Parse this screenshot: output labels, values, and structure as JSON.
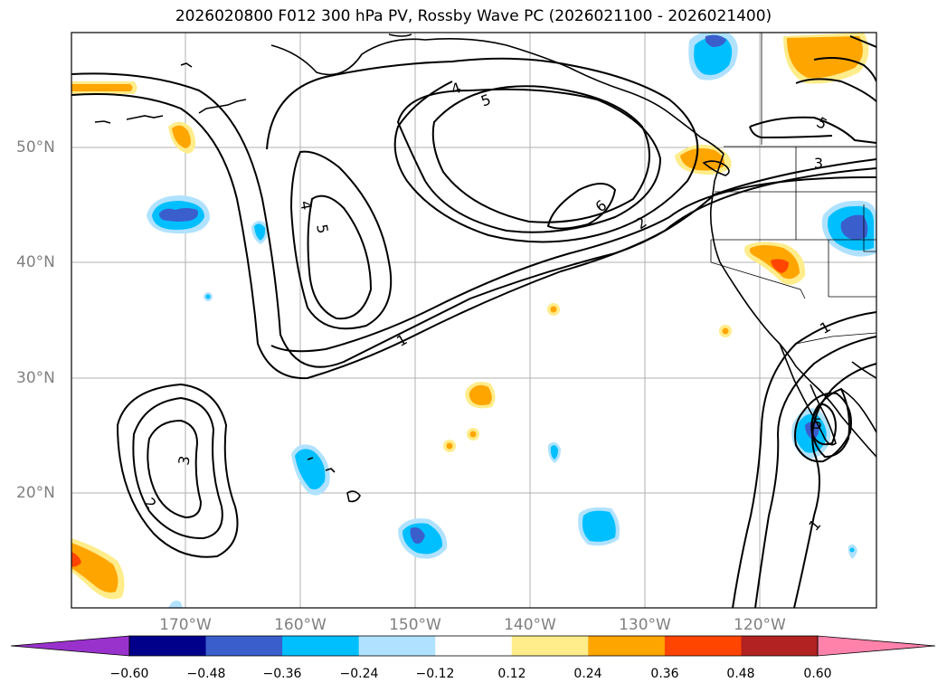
{
  "title": "2026020800 F012 300 hPa PV, Rossby Wave PC (2026021100 - 2026021400)",
  "lat_labels": [
    "50°N",
    "40°N",
    "30°N",
    "20°N"
  ],
  "lon_labels": [
    "170°W",
    "160°W",
    "150°W",
    "140°W",
    "130°W",
    "120°W"
  ],
  "colorbar": {
    "ticks": [
      "−0.60",
      "−0.48",
      "−0.36",
      "−0.24",
      "−0.12",
      "0.12",
      "0.24",
      "0.36",
      "0.48",
      "0.60"
    ],
    "colors": [
      "#9932cc",
      "#00008b",
      "#3a5fcd",
      "#00bfff",
      "#b0e2ff",
      "#ffffff",
      "#ffec8b",
      "#ffa500",
      "#ff4500",
      "#b22222",
      "#ff82ab"
    ]
  },
  "contour_labels": [
    "1",
    "1",
    "1",
    "2",
    "2",
    "3",
    "3",
    "4",
    "4",
    "5",
    "5",
    "5",
    "5",
    "6"
  ]
}
